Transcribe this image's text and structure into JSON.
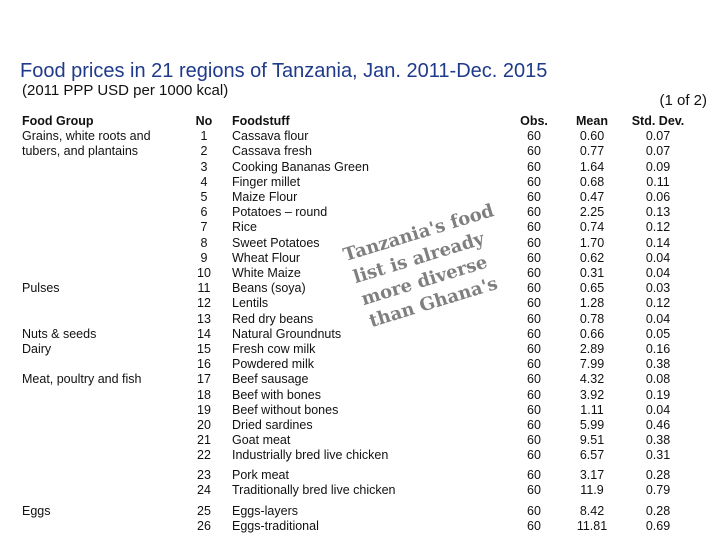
{
  "title": "Food prices in 21 regions of Tanzania, Jan. 2011-Dec. 2015",
  "subtitle": "(2011 PPP USD per 1000 kcal)",
  "page_indicator": "(1 of 2)",
  "headers": {
    "group": "Food Group",
    "no": "No",
    "food": "Foodstuff",
    "obs": "Obs.",
    "mean": "Mean",
    "std": "Std. Dev."
  },
  "groups": [
    {
      "label": "Grains, white roots and",
      "row": 1
    },
    {
      "label": "tubers, and plantains",
      "row": 2
    },
    {
      "label": "Pulses",
      "row": 11
    },
    {
      "label": "Nuts & seeds",
      "row": 14
    },
    {
      "label": "Dairy",
      "row": 15
    },
    {
      "label": "Meat, poultry and fish",
      "row": 17
    },
    {
      "label": "Eggs",
      "row": 25
    }
  ],
  "rows": [
    {
      "no": "1",
      "food": "Cassava flour",
      "obs": "60",
      "mean": "0.60",
      "std": "0.07"
    },
    {
      "no": "2",
      "food": "Cassava fresh",
      "obs": "60",
      "mean": "0.77",
      "std": "0.07"
    },
    {
      "no": "3",
      "food": "Cooking Bananas Green",
      "obs": "60",
      "mean": "1.64",
      "std": "0.09"
    },
    {
      "no": "4",
      "food": "Finger millet",
      "obs": "60",
      "mean": "0.68",
      "std": "0.11"
    },
    {
      "no": "5",
      "food": "Maize Flour",
      "obs": "60",
      "mean": "0.47",
      "std": "0.06"
    },
    {
      "no": "6",
      "food": "Potatoes – round",
      "obs": "60",
      "mean": "2.25",
      "std": "0.13"
    },
    {
      "no": "7",
      "food": "Rice",
      "obs": "60",
      "mean": "0.74",
      "std": "0.12"
    },
    {
      "no": "8",
      "food": "Sweet Potatoes",
      "obs": "60",
      "mean": "1.70",
      "std": "0.14"
    },
    {
      "no": "9",
      "food": "Wheat Flour",
      "obs": "60",
      "mean": "0.62",
      "std": "0.04"
    },
    {
      "no": "10",
      "food": "White Maize",
      "obs": "60",
      "mean": "0.31",
      "std": "0.04"
    },
    {
      "no": "11",
      "food": "Beans (soya)",
      "obs": "60",
      "mean": "0.65",
      "std": "0.03"
    },
    {
      "no": "12",
      "food": "Lentils",
      "obs": "60",
      "mean": "1.28",
      "std": "0.12"
    },
    {
      "no": "13",
      "food": "Red dry beans",
      "obs": "60",
      "mean": "0.78",
      "std": "0.04"
    },
    {
      "no": "14",
      "food": "Natural Groundnuts",
      "obs": "60",
      "mean": "0.66",
      "std": "0.05"
    },
    {
      "no": "15",
      "food": "Fresh cow milk",
      "obs": "60",
      "mean": "2.89",
      "std": "0.16"
    },
    {
      "no": "16",
      "food": "Powdered milk",
      "obs": "60",
      "mean": "7.99",
      "std": "0.38"
    },
    {
      "no": "17",
      "food": "Beef sausage",
      "obs": "60",
      "mean": "4.32",
      "std": "0.08"
    },
    {
      "no": "18",
      "food": "Beef with bones",
      "obs": "60",
      "mean": "3.92",
      "std": "0.19"
    },
    {
      "no": "19",
      "food": "Beef without bones",
      "obs": "60",
      "mean": "1.11",
      "std": "0.04"
    },
    {
      "no": "20",
      "food": "Dried sardines",
      "obs": "60",
      "mean": "5.99",
      "std": "0.46"
    },
    {
      "no": "21",
      "food": "Goat meat",
      "obs": "60",
      "mean": "9.51",
      "std": "0.38"
    },
    {
      "no": "22",
      "food": "Industrially bred live chicken",
      "obs": "60",
      "mean": "6.57",
      "std": "0.31"
    },
    {
      "no": "23",
      "food": "Pork meat",
      "obs": "60",
      "mean": "3.17",
      "std": "0.28"
    },
    {
      "no": "24",
      "food": "Traditionally bred live chicken",
      "obs": "60",
      "mean": "11.9",
      "std": "0.79"
    },
    {
      "no": "25",
      "food": "Eggs-layers",
      "obs": "60",
      "mean": "8.42",
      "std": "0.28"
    },
    {
      "no": "26",
      "food": "Eggs-traditional",
      "obs": "60",
      "mean": "11.81",
      "std": "0.69"
    }
  ],
  "annotation": {
    "lines": [
      "Tanzania's food",
      "list is already",
      "more diverse",
      "than Ghana's"
    ]
  }
}
